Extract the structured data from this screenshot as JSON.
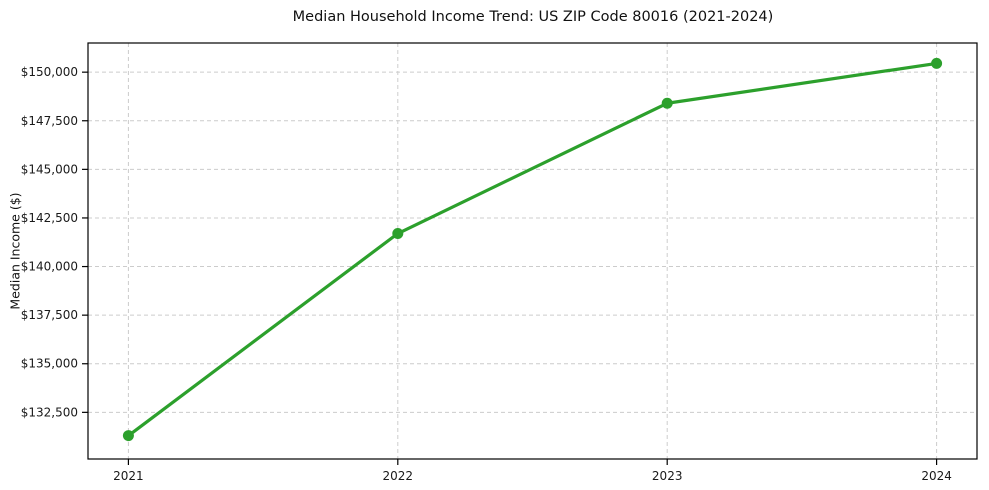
{
  "figure": {
    "background": "#ffffff"
  },
  "chart_data": {
    "type": "line",
    "title": "Median Household Income Trend: US ZIP Code 80016 (2021-2024)",
    "xlabel": "",
    "ylabel": "Median Income ($)",
    "x": [
      2021,
      2022,
      2023,
      2024
    ],
    "x_tick_labels": [
      "2021",
      "2022",
      "2023",
      "2024"
    ],
    "series": [
      {
        "name": "Median household income",
        "values": [
          131300,
          141700,
          148400,
          150450
        ],
        "color": "#2ca02c",
        "marker": "circle"
      }
    ],
    "y_ticks": [
      132500,
      135000,
      137500,
      140000,
      142500,
      145000,
      147500,
      150000
    ],
    "y_tick_labels": [
      "$132,500",
      "$135,000",
      "$137,500",
      "$140,000",
      "$142,500",
      "$145,000",
      "$147,500",
      "$150,000"
    ],
    "xlim": [
      2020.85,
      2024.15
    ],
    "ylim": [
      130100,
      151500
    ],
    "grid": "dashed, both axes",
    "grid_color": "#cccccc",
    "frame_color": "#000000",
    "tick_text_color": "#1a1a1a",
    "legend": "none"
  }
}
